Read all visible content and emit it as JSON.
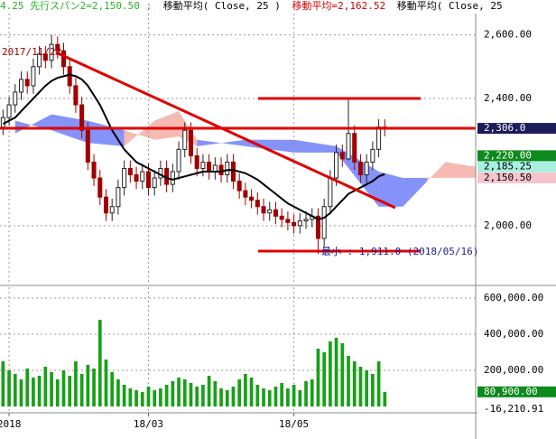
{
  "header": [
    "4.25 先行スパン2=2,150.50 ;",
    "移動平均( Close, 25 )",
    "移動平均=2,162.52",
    "移動平均( Close, 25"
  ],
  "annotations": [
    "2017/11/22",
    "最小 : 1,911.0 (2018/05/16)"
  ],
  "chart_data": {
    "type": "candlestick",
    "xlim": [
      -0.5,
      78
    ],
    "xticks": [
      {
        "value": 1,
        "label": "2018"
      },
      {
        "value": 24,
        "label": "18/03"
      },
      {
        "value": 48,
        "label": "18/05"
      }
    ],
    "ylim": [
      1815,
      2667
    ],
    "yticks": [
      {
        "value": 2600,
        "label": "2,600.00"
      },
      {
        "value": 2400,
        "label": "2,400.00"
      },
      {
        "value": 2000,
        "label": "2,000.00"
      }
    ],
    "grid": true,
    "up_color": "#ffffff",
    "down_color": "#a00000",
    "open": [
      2310,
      2340,
      2380,
      2420,
      2460,
      2440,
      2500,
      2540,
      2520,
      2570,
      2550,
      2500,
      2440,
      2380,
      2300,
      2200,
      2150,
      2090,
      2040,
      2060,
      2120,
      2180,
      2160,
      2140,
      2170,
      2120,
      2150,
      2180,
      2130,
      2170,
      2240,
      2300,
      2220,
      2180,
      2200,
      2170,
      2190,
      2160,
      2200,
      2140,
      2110,
      2090,
      2080,
      2060,
      2040,
      2050,
      2030,
      2020,
      2010,
      2000,
      2015,
      2020,
      2030,
      1960,
      2060,
      2150,
      2230,
      2210,
      2290,
      2200,
      2160,
      2200,
      2240,
      2310
    ],
    "high": [
      2365,
      2405,
      2445,
      2485,
      2485,
      2525,
      2565,
      2565,
      2600,
      2595,
      2575,
      2525,
      2465,
      2405,
      2325,
      2225,
      2175,
      2115,
      2085,
      2145,
      2205,
      2205,
      2185,
      2195,
      2195,
      2175,
      2205,
      2205,
      2195,
      2265,
      2325,
      2325,
      2245,
      2225,
      2225,
      2215,
      2215,
      2225,
      2225,
      2165,
      2135,
      2115,
      2105,
      2085,
      2075,
      2075,
      2055,
      2045,
      2035,
      2040,
      2045,
      2055,
      2055,
      2085,
      2175,
      2255,
      2255,
      2400,
      2315,
      2225,
      2225,
      2265,
      2335,
      2335
    ],
    "low": [
      2285,
      2315,
      2355,
      2395,
      2415,
      2415,
      2475,
      2495,
      2495,
      2525,
      2475,
      2415,
      2355,
      2275,
      2175,
      2125,
      2065,
      2015,
      2015,
      2035,
      2095,
      2135,
      2115,
      2115,
      2095,
      2095,
      2125,
      2105,
      2105,
      2145,
      2215,
      2195,
      2155,
      2155,
      2145,
      2145,
      2135,
      2135,
      2115,
      2085,
      2065,
      2055,
      2035,
      2015,
      2015,
      2005,
      1995,
      1985,
      1975,
      1975,
      1990,
      1995,
      1911,
      1935,
      2035,
      2125,
      2185,
      2205,
      2175,
      2135,
      2135,
      2175,
      2215,
      2281
    ],
    "close": [
      2340,
      2380,
      2420,
      2460,
      2440,
      2500,
      2540,
      2520,
      2570,
      2550,
      2500,
      2440,
      2380,
      2300,
      2200,
      2150,
      2090,
      2040,
      2060,
      2120,
      2180,
      2160,
      2140,
      2170,
      2120,
      2150,
      2180,
      2130,
      2170,
      2240,
      2300,
      2220,
      2180,
      2200,
      2170,
      2190,
      2160,
      2200,
      2140,
      2110,
      2090,
      2080,
      2060,
      2040,
      2050,
      2030,
      2020,
      2010,
      2000,
      2015,
      2020,
      2030,
      1960,
      2060,
      2150,
      2230,
      2210,
      2290,
      2200,
      2160,
      2200,
      2240,
      2310,
      2306
    ],
    "series": [
      {
        "color": "#000000",
        "values": [
          2320,
          2330,
          2340,
          2360,
          2380,
          2400,
          2420,
          2440,
          2455,
          2465,
          2470,
          2475,
          2470,
          2460,
          2440,
          2410,
          2380,
          2340,
          2300,
          2270,
          2240,
          2220,
          2200,
          2190,
          2180,
          2170,
          2160,
          2150,
          2145,
          2150,
          2155,
          2160,
          2165,
          2170,
          2170,
          2170,
          2170,
          2175,
          2175,
          2170,
          2165,
          2155,
          2145,
          2130,
          2115,
          2100,
          2085,
          2070,
          2060,
          2050,
          2040,
          2030,
          2020,
          2025,
          2040,
          2060,
          2080,
          2100,
          2110,
          2120,
          2130,
          2140,
          2155,
          2162.52
        ]
      }
    ],
    "cloud": {
      "x": [
        2,
        8,
        14,
        20,
        25,
        29,
        32,
        40,
        48,
        55,
        62,
        66,
        70,
        73,
        78
      ],
      "span1": [
        2330,
        2300,
        2260,
        2250,
        2330,
        2360,
        2270,
        2250,
        2230,
        2230,
        2060,
        2060,
        2140,
        2200,
        2185.25
      ],
      "span2": [
        2290,
        2350,
        2330,
        2300,
        2270,
        2280,
        2250,
        2270,
        2270,
        2250,
        2170,
        2150,
        2150.5,
        2150.5,
        2150.5
      ],
      "color_up": "#f4aea6",
      "color_down": "#6f7ff8"
    },
    "price_labels": [
      {
        "value": 2306,
        "label": "2,306.0",
        "color": "#1c1c5a",
        "text_color": "#ffffff"
      },
      {
        "value": 2220,
        "label": "2,220.00",
        "color": "#0c8a1c",
        "text_color": "#ffffff"
      },
      {
        "value": 2185.25,
        "label": "2,185.25",
        "color": "#a8f0e0",
        "text_color": "#000000"
      },
      {
        "value": 2150.5,
        "label": "2,150.50",
        "color": "#f6c4cc",
        "text_color": "#000000"
      }
    ],
    "volume": {
      "color": "#18a018",
      "ylim": [
        -25000,
        660000
      ],
      "yticks": [
        {
          "value": 600000,
          "label": "600,000.00"
        },
        {
          "value": 400000,
          "label": "400,000.00"
        },
        {
          "value": 200000,
          "label": "200,000.00"
        }
      ],
      "values": [
        250000,
        200000,
        180000,
        150000,
        210000,
        160000,
        170000,
        220000,
        190000,
        150000,
        200000,
        170000,
        250000,
        180000,
        230000,
        210000,
        480000,
        260000,
        190000,
        150000,
        120000,
        100000,
        90000,
        80000,
        110000,
        90000,
        100000,
        120000,
        140000,
        160000,
        150000,
        130000,
        110000,
        120000,
        170000,
        140000,
        100000,
        90000,
        110000,
        150000,
        180000,
        160000,
        120000,
        100000,
        90000,
        110000,
        130000,
        100000,
        120000,
        90000,
        140000,
        150000,
        320000,
        300000,
        360000,
        380000,
        350000,
        280000,
        250000,
        220000,
        200000,
        180000,
        250000,
        80900
      ],
      "labels": [
        {
          "value": 80900,
          "label": "80,900.00",
          "color": "#0c8a1c",
          "text_color": "#ffffff"
        },
        {
          "value": -16210.91,
          "label": "-16,210.91",
          "color": "#ffffff",
          "text_color": "#000000"
        }
      ]
    }
  }
}
